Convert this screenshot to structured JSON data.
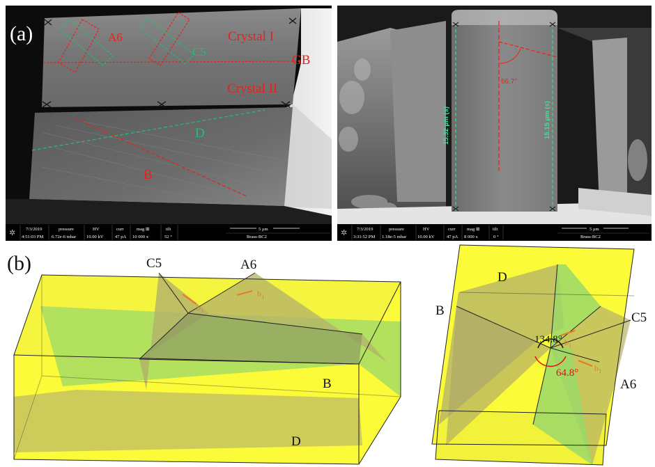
{
  "panel_a": {
    "label": "(a)",
    "left_image": {
      "overlay": {
        "a6": "A6",
        "c5": "C5",
        "crystal1": "Crystal I",
        "gb": "GB",
        "crystal2": "Crystal II",
        "d": "D",
        "b": "B"
      },
      "info_bar": {
        "date": "7/3/2019",
        "time": "4:51:03 PM",
        "pressure_label": "pressure",
        "pressure": "6.72e-6 mbar",
        "hv_label": "HV",
        "hv": "10.00 kV",
        "curr_label": "curr",
        "curr": "47 pA",
        "mag_label": "mag ⊞",
        "mag": "10 000 x",
        "tilt_label": "tilt",
        "tilt": "52 °",
        "scale": "5 μm",
        "sample": "Brass-BC2"
      }
    },
    "right_image": {
      "overlay": {
        "angle": "66.7°",
        "height_left": "15.32 μm (s)",
        "height_right": "15.15 μm (s)"
      },
      "info_bar": {
        "date": "7/3/2019",
        "time": "3:31:52 PM",
        "pressure_label": "pressure",
        "pressure": "1.18e-5 mbar",
        "hv_label": "HV",
        "hv": "10.00 kV",
        "curr_label": "curr",
        "curr": "47 pA",
        "mag_label": "mag ⊞",
        "mag": "8 000 x",
        "tilt_label": "tilt",
        "tilt": "0 °",
        "scale": "5 μm",
        "sample": "Brass-BC2"
      }
    }
  },
  "panel_b": {
    "label": "(b)",
    "left_model": {
      "c5": "C5",
      "a6": "A6",
      "b": "B",
      "d": "D",
      "burgers1": "b",
      "burgers1_sub": "I",
      "burgers2": "b",
      "burgers2_sub": "I"
    },
    "right_model": {
      "d": "D",
      "b": "B",
      "c5": "C5",
      "a6": "A6",
      "angle1": "134.8°",
      "angle2": "64.8°",
      "burgers1": "b",
      "burgers1_sub": "I",
      "burgers2": "b",
      "burgers2_sub": "I"
    }
  },
  "colors": {
    "trace_red": "#e8201c",
    "trace_green": "#20c070",
    "measure_green": "#3ee09a",
    "crystal_yellow": "#fbfb3a",
    "plane_green": "#9bd86a",
    "plane_olive": "#b3b06a",
    "burgers_orange": "#e87a2a",
    "angle_red": "#e01010"
  }
}
